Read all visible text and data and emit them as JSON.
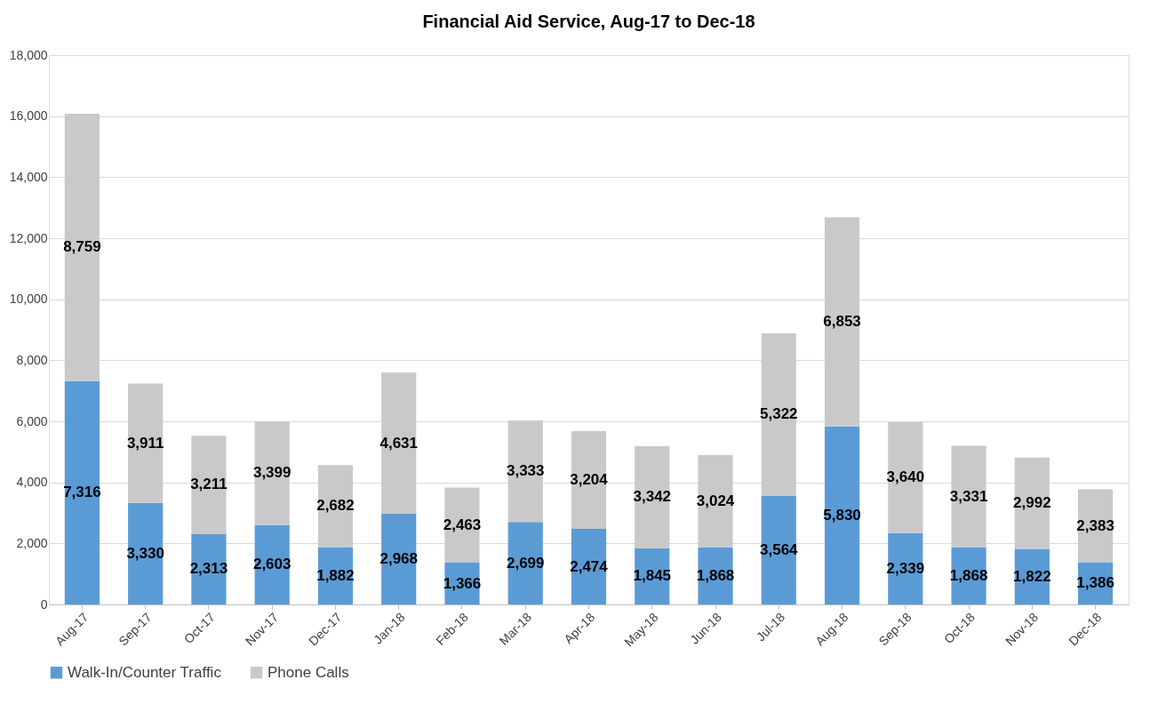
{
  "chart_data": {
    "type": "bar",
    "title": "Financial Aid Service, Aug-17 to Dec-18",
    "categories": [
      "Aug-17",
      "Sep-17",
      "Oct-17",
      "Nov-17",
      "Dec-17",
      "Jan-18",
      "Feb-18",
      "Mar-18",
      "Apr-18",
      "May-18",
      "Jun-18",
      "Jul-18",
      "Aug-18",
      "Sep-18",
      "Oct-18",
      "Nov-18",
      "Dec-18"
    ],
    "series": [
      {
        "name": "Walk-In/Counter Traffic",
        "color": "#5b9bd5",
        "values": [
          7316,
          3330,
          2313,
          2603,
          1882,
          2968,
          1366,
          2699,
          2474,
          1845,
          1868,
          3564,
          5830,
          2339,
          1868,
          1822,
          1386
        ],
        "value_labels": [
          "7,316",
          "3,330",
          "2,313",
          "2,603",
          "1,882",
          "2,968",
          "1,366",
          "2,699",
          "2,474",
          "1,845",
          "1,868",
          "3,564",
          "5,830",
          "2,339",
          "1,868",
          "1,822",
          "1,386"
        ]
      },
      {
        "name": "Phone Calls",
        "color": "#c9c9c9",
        "values": [
          8759,
          3911,
          3211,
          3399,
          2682,
          4631,
          2463,
          3333,
          3204,
          3342,
          3024,
          5322,
          6853,
          3640,
          3331,
          2992,
          2383
        ],
        "value_labels": [
          "8,759",
          "3,911",
          "3,211",
          "3,399",
          "2,682",
          "4,631",
          "2,463",
          "3,333",
          "3,204",
          "3,342",
          "3,024",
          "5,322",
          "6,853",
          "3,640",
          "3,331",
          "2,992",
          "2,383"
        ]
      }
    ],
    "stacked": true,
    "ylim": [
      0,
      18000
    ],
    "yticks": [
      0,
      {
        "value": 2000,
        "label": "2,000"
      },
      {
        "value": 4000,
        "label": "4,000"
      },
      {
        "value": 6000,
        "label": "6,000"
      },
      {
        "value": 8000,
        "label": "8,000"
      },
      {
        "value": 10000,
        "label": "10,000"
      },
      {
        "value": 12000,
        "label": "12,000"
      },
      {
        "value": 14000,
        "label": "14,000"
      },
      {
        "value": 16000,
        "label": "16,000"
      },
      {
        "value": 18000,
        "label": "18,000"
      }
    ],
    "grid": "y",
    "legend": "bottom"
  }
}
